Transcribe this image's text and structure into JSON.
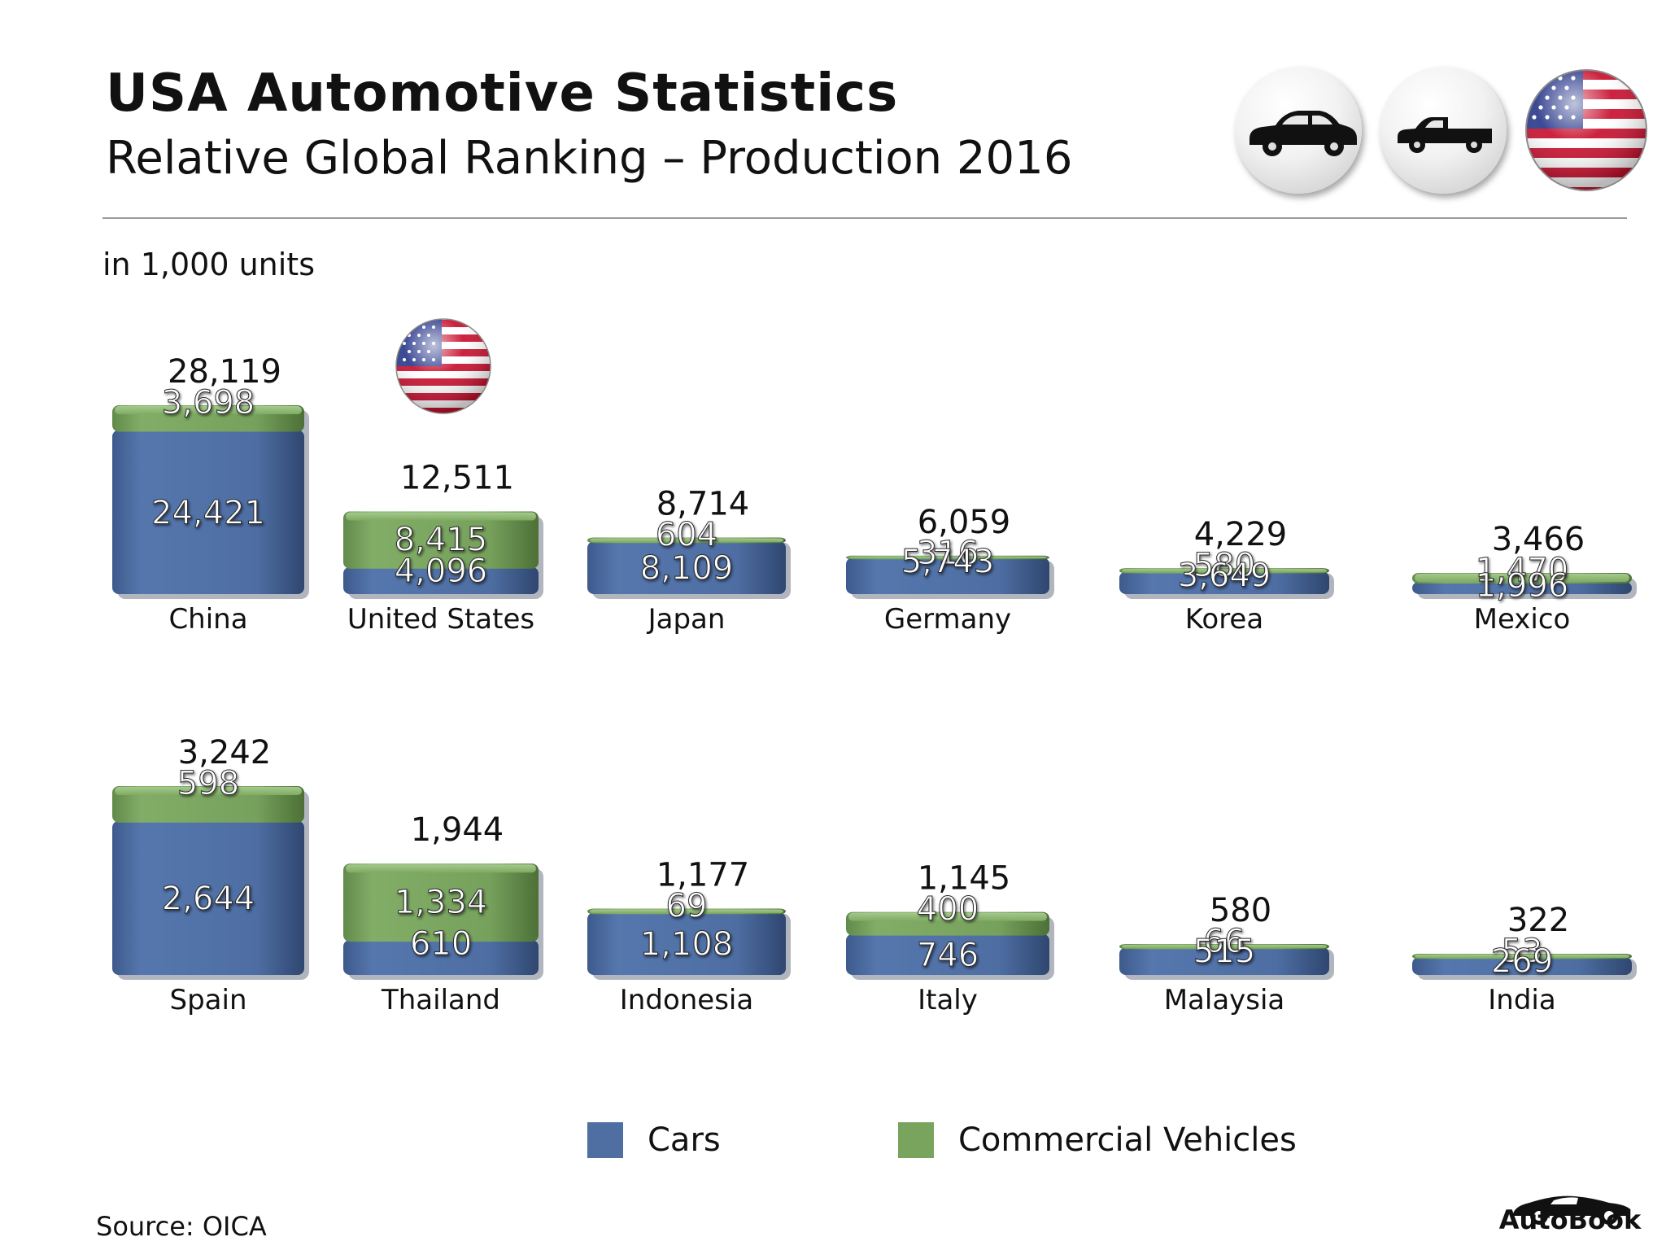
{
  "header": {
    "title": "USA Automotive Statistics",
    "subtitle": "Relative Global Ranking – Production 2016",
    "units": "in 1,000 units"
  },
  "badges": {
    "car_icon": "car-icon",
    "pickup_icon": "pickup-truck-icon",
    "flag_icon": "usa-flag-icon"
  },
  "colors": {
    "cars": "#4f6fa3",
    "commercial": "#78a45e"
  },
  "chart_data": {
    "type": "bar",
    "stacked": true,
    "title": "Relative Global Ranking – Production 2016",
    "unit": "in 1,000 units",
    "categories": [
      "China",
      "United States",
      "Japan",
      "Germany",
      "Korea",
      "Mexico",
      "Spain",
      "Thailand",
      "Indonesia",
      "Italy",
      "Malaysia",
      "India"
    ],
    "series": [
      {
        "name": "Cars",
        "values": [
          24421,
          4096,
          8109,
          5743,
          3649,
          1996,
          2644,
          610,
          1108,
          746,
          515,
          269
        ]
      },
      {
        "name": "Commercial Vehicles",
        "values": [
          3698,
          8415,
          604,
          316,
          580,
          1470,
          598,
          1334,
          69,
          400,
          66,
          53
        ]
      }
    ],
    "totals": [
      28119,
      12511,
      8714,
      6059,
      4229,
      3466,
      3242,
      1944,
      1177,
      1145,
      580,
      322
    ],
    "display": {
      "cars": [
        "24,421",
        "4,096",
        "8,109",
        "5,743",
        "3,649",
        "1,996",
        "2,644",
        "610",
        "1,108",
        "746",
        "515",
        "269"
      ],
      "commercial": [
        "3,698",
        "8,415",
        "604",
        "316",
        "580",
        "1,470",
        "598",
        "1,334",
        "69",
        "400",
        "66",
        "53"
      ],
      "totals": [
        "28,119",
        "12,511",
        "8,714",
        "6,059",
        "4,229",
        "3,466",
        "3,242",
        "1,944",
        "1,177",
        "1,145",
        "580",
        "322"
      ]
    },
    "highlight": "United States",
    "legend": [
      "Cars",
      "Commercial Vehicles"
    ]
  },
  "legend": {
    "cars_label": "Cars",
    "commercial_label": "Commercial Vehicles"
  },
  "footer": {
    "source": "Source:  OICA",
    "brand": "AutoBook"
  }
}
